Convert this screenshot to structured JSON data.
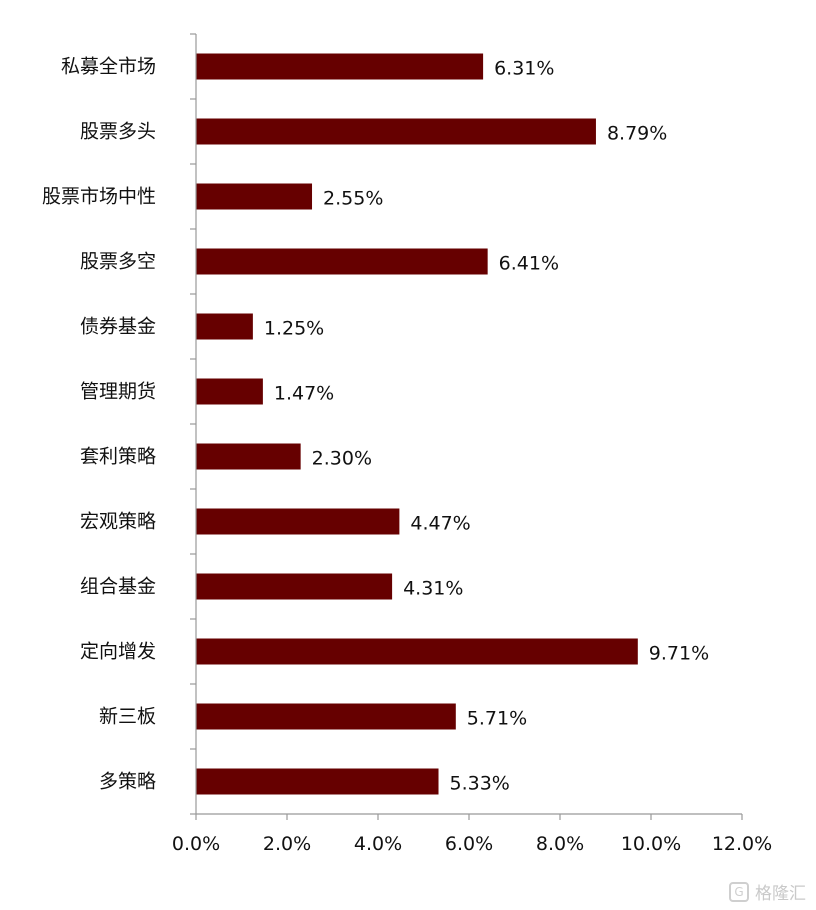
{
  "chart_data": {
    "type": "bar",
    "orientation": "horizontal",
    "categories": [
      "私募全市场",
      "股票多头",
      "股票市场中性",
      "股票多空",
      "债券基金",
      "管理期货",
      "套利策略",
      "宏观策略",
      "组合基金",
      "定向增发",
      "新三板",
      "多策略"
    ],
    "values": [
      6.31,
      8.79,
      2.55,
      6.41,
      1.25,
      1.47,
      2.3,
      4.47,
      4.31,
      9.71,
      5.71,
      5.33
    ],
    "value_labels": [
      "6.31%",
      "8.79%",
      "2.55%",
      "6.41%",
      "1.25%",
      "1.47%",
      "2.30%",
      "4.47%",
      "4.31%",
      "9.71%",
      "5.71%",
      "5.33%"
    ],
    "xlim": [
      0,
      12
    ],
    "x_ticks": [
      0,
      2,
      4,
      6,
      8,
      10,
      12
    ],
    "x_tick_labels": [
      "0.0%",
      "2.0%",
      "4.0%",
      "6.0%",
      "8.0%",
      "10.0%",
      "12.0%"
    ],
    "title": "",
    "xlabel": "",
    "ylabel": "",
    "grid": false,
    "legend": "none",
    "bar_color": "#660000"
  },
  "watermark": {
    "text": "格隆汇",
    "icon": "glh-logo-icon"
  }
}
